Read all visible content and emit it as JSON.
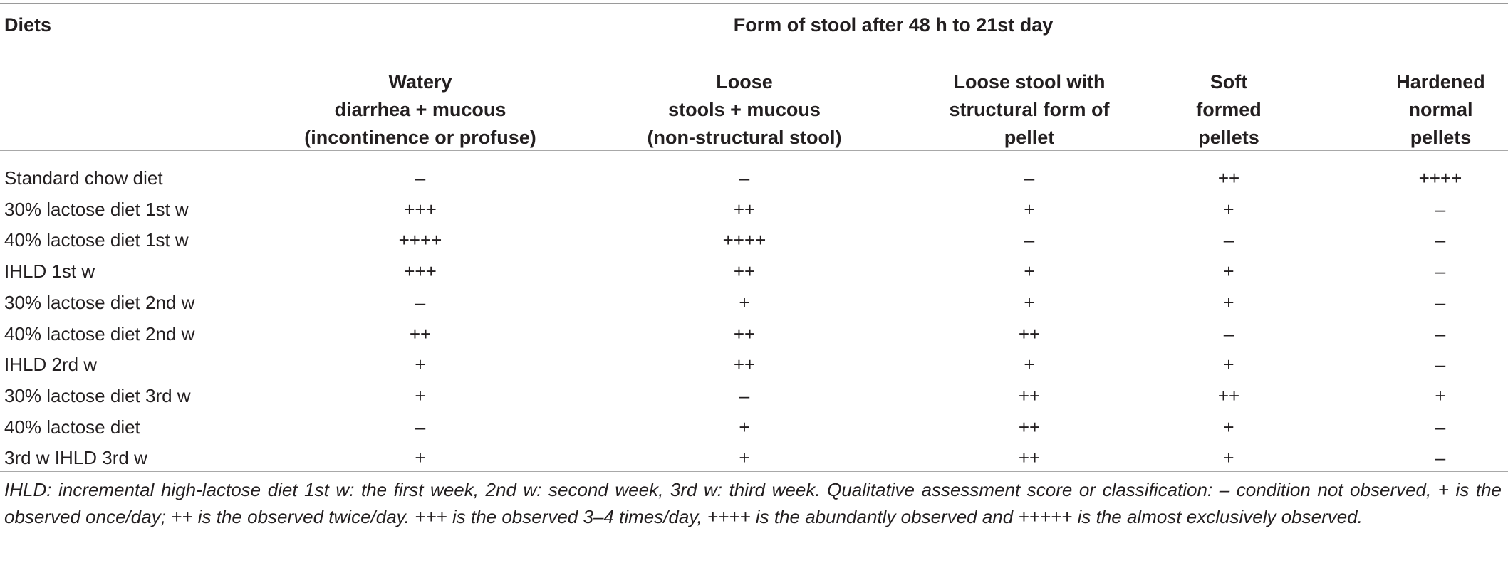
{
  "table": {
    "diets_header": "Diets",
    "span_header": "Form of stool after 48 h to 21st day",
    "columns": [
      {
        "lines": [
          "Watery",
          "diarrhea + mucous",
          "(incontinence or profuse)"
        ]
      },
      {
        "lines": [
          "Loose",
          "stools + mucous",
          "(non-structural stool)"
        ]
      },
      {
        "lines": [
          "Loose stool with",
          "structural form of",
          "pellet"
        ]
      },
      {
        "lines": [
          "Soft",
          "formed",
          "pellets"
        ]
      },
      {
        "lines": [
          "Hardened",
          "normal",
          "pellets"
        ]
      }
    ],
    "rows": [
      {
        "label": "Standard chow diet",
        "values": [
          "–",
          "–",
          "–",
          "++",
          "++++"
        ]
      },
      {
        "label": "30% lactose diet 1st w",
        "values": [
          "+++",
          "++",
          "+",
          "+",
          "–"
        ]
      },
      {
        "label": "40% lactose diet 1st w",
        "values": [
          "++++",
          "++++",
          "–",
          "–",
          "–"
        ]
      },
      {
        "label": "IHLD 1st w",
        "values": [
          "+++",
          "++",
          "+",
          "+",
          "–"
        ]
      },
      {
        "label": "30% lactose diet 2nd w",
        "values": [
          "–",
          "+",
          "+",
          "+",
          "–"
        ]
      },
      {
        "label": "40% lactose diet 2nd w",
        "values": [
          "++",
          "++",
          "++",
          "–",
          "–"
        ]
      },
      {
        "label": "IHLD 2rd w",
        "values": [
          "+",
          "++",
          "+",
          "+",
          "–"
        ]
      },
      {
        "label": "30% lactose diet 3rd w",
        "values": [
          "+",
          "–",
          "++",
          "++",
          "+"
        ]
      },
      {
        "label": "40% lactose diet",
        "values": [
          "–",
          "+",
          "++",
          "+",
          "–"
        ]
      },
      {
        "label": "3rd w IHLD 3rd w",
        "values": [
          "+",
          "+",
          "++",
          "+",
          "–"
        ]
      }
    ]
  },
  "footnote": "IHLD: incremental high-lactose diet 1st w: the first week, 2nd w: second week, 3rd w: third week. Qualitative assessment score or classification: – condition not observed, + is the observed once/day; ++ is the observed twice/day. +++ is the observed 3–4 times/day, ++++ is the abundantly observed and +++++ is the almost exclusively observed."
}
